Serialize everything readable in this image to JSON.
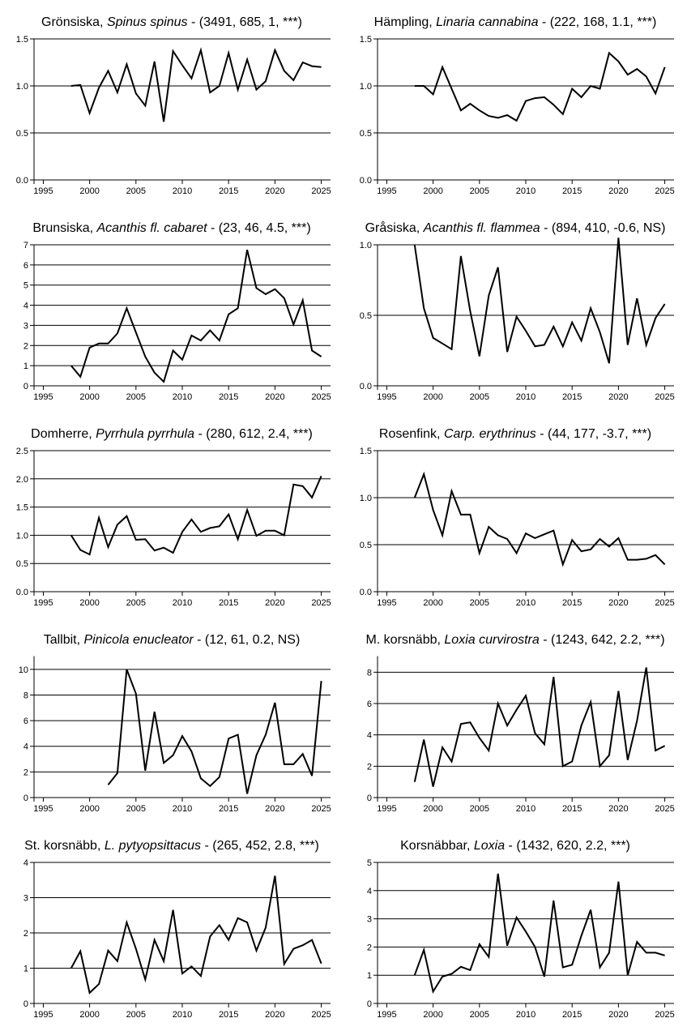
{
  "x_ticks": [
    1995,
    2000,
    2005,
    2010,
    2015,
    2020,
    2025
  ],
  "chart_data": [
    {
      "type": "line",
      "title_common": "Grönsiska, ",
      "title_species": "Spinus spinus",
      "title_stats": " - (3491, 685, 1, ***)",
      "xlim": [
        1994,
        2026
      ],
      "ylim": [
        0,
        1.5
      ],
      "yticks": [
        0.0,
        0.5,
        1.0,
        1.5
      ],
      "ytick_labels": [
        "0.0",
        "0.5",
        "1.0",
        "1.5"
      ],
      "grid": true,
      "series": [
        {
          "x": [
            1998,
            1999,
            2000,
            2001,
            2002,
            2003,
            2004,
            2005,
            2006,
            2007,
            2008,
            2009,
            2010,
            2011,
            2012,
            2013,
            2014,
            2015,
            2016,
            2017,
            2018,
            2019,
            2020,
            2021,
            2022,
            2023,
            2024,
            2025
          ],
          "values": [
            1.0,
            1.01,
            0.71,
            0.98,
            1.16,
            0.93,
            1.23,
            0.92,
            0.79,
            1.26,
            0.62,
            1.37,
            1.22,
            1.08,
            1.38,
            0.93,
            1.0,
            1.35,
            0.96,
            1.28,
            0.96,
            1.05,
            1.38,
            1.16,
            1.06,
            1.25,
            1.21,
            1.2
          ]
        }
      ]
    },
    {
      "type": "line",
      "title_common": "Hämpling, ",
      "title_species": "Linaria cannabina",
      "title_stats": " - (222, 168, 1.1, ***)",
      "xlim": [
        1994,
        2026
      ],
      "ylim": [
        0,
        1.5
      ],
      "yticks": [
        0.0,
        0.5,
        1.0,
        1.5
      ],
      "ytick_labels": [
        "0.0",
        "0.5",
        "1.0",
        "1.5"
      ],
      "grid": true,
      "series": [
        {
          "x": [
            1998,
            1999,
            2000,
            2001,
            2002,
            2003,
            2004,
            2005,
            2006,
            2007,
            2008,
            2009,
            2010,
            2011,
            2012,
            2013,
            2014,
            2015,
            2016,
            2017,
            2018,
            2019,
            2020,
            2021,
            2022,
            2023,
            2024,
            2025
          ],
          "values": [
            1.0,
            1.0,
            0.91,
            1.2,
            0.97,
            0.74,
            0.81,
            0.74,
            0.68,
            0.66,
            0.69,
            0.63,
            0.84,
            0.87,
            0.88,
            0.8,
            0.7,
            0.97,
            0.88,
            1.0,
            0.97,
            1.35,
            1.26,
            1.12,
            1.18,
            1.1,
            0.92,
            1.2
          ]
        }
      ]
    },
    {
      "type": "line",
      "title_common": "Brunsiska, ",
      "title_species": "Acanthis fl. cabaret",
      "title_stats": " - (23, 46, 4.5, ***)",
      "xlim": [
        1994,
        2026
      ],
      "ylim": [
        0,
        7
      ],
      "yticks": [
        0,
        1,
        2,
        3,
        4,
        5,
        6,
        7
      ],
      "ytick_labels": [
        "0",
        "1",
        "2",
        "3",
        "4",
        "5",
        "6",
        "7"
      ],
      "grid": true,
      "series": [
        {
          "x": [
            1998,
            1999,
            2000,
            2001,
            2002,
            2003,
            2004,
            2005,
            2006,
            2007,
            2008,
            2009,
            2010,
            2011,
            2012,
            2013,
            2014,
            2015,
            2016,
            2017,
            2018,
            2019,
            2020,
            2021,
            2022,
            2023,
            2024,
            2025
          ],
          "values": [
            1.0,
            0.45,
            1.9,
            2.1,
            2.1,
            2.6,
            3.85,
            2.65,
            1.45,
            0.65,
            0.2,
            1.75,
            1.3,
            2.5,
            2.25,
            2.75,
            2.25,
            3.55,
            3.85,
            6.75,
            4.85,
            4.55,
            4.8,
            4.35,
            3.05,
            4.25,
            1.75,
            1.45
          ]
        }
      ]
    },
    {
      "type": "line",
      "title_common": "Gråsiska, ",
      "title_species": "Acanthis fl. flammea",
      "title_stats": " - (894, 410, -0.6, NS)",
      "xlim": [
        1994,
        2026
      ],
      "ylim": [
        0,
        1.0
      ],
      "yticks": [
        0.0,
        0.5,
        1.0
      ],
      "ytick_labels": [
        "0.0",
        "0.5",
        "1.0"
      ],
      "grid": true,
      "series": [
        {
          "x": [
            1998,
            1999,
            2000,
            2001,
            2002,
            2003,
            2004,
            2005,
            2006,
            2007,
            2008,
            2009,
            2010,
            2011,
            2012,
            2013,
            2014,
            2015,
            2016,
            2017,
            2018,
            2019,
            2020,
            2021,
            2022,
            2023,
            2024,
            2025
          ],
          "values": [
            1.0,
            0.55,
            0.34,
            0.3,
            0.26,
            0.92,
            0.53,
            0.21,
            0.64,
            0.84,
            0.24,
            0.49,
            0.39,
            0.28,
            0.29,
            0.42,
            0.28,
            0.45,
            0.32,
            0.55,
            0.38,
            0.16,
            1.05,
            0.29,
            0.62,
            0.29,
            0.48,
            0.58
          ]
        }
      ]
    },
    {
      "type": "line",
      "title_common": "Domherre, ",
      "title_species": "Pyrrhula pyrrhula",
      "title_stats": " - (280, 612, 2.4, ***)",
      "xlim": [
        1994,
        2026
      ],
      "ylim": [
        0,
        2.5
      ],
      "yticks": [
        0.0,
        0.5,
        1.0,
        1.5,
        2.0,
        2.5
      ],
      "ytick_labels": [
        "0.0",
        "0.5",
        "1.0",
        "1.5",
        "2.0",
        "2.5"
      ],
      "grid": true,
      "series": [
        {
          "x": [
            1998,
            1999,
            2000,
            2001,
            2002,
            2003,
            2004,
            2005,
            2006,
            2007,
            2008,
            2009,
            2010,
            2011,
            2012,
            2013,
            2014,
            2015,
            2016,
            2017,
            2018,
            2019,
            2020,
            2021,
            2022,
            2023,
            2024,
            2025
          ],
          "values": [
            1.0,
            0.74,
            0.66,
            1.31,
            0.79,
            1.19,
            1.34,
            0.92,
            0.93,
            0.73,
            0.78,
            0.69,
            1.06,
            1.28,
            1.06,
            1.13,
            1.16,
            1.37,
            0.93,
            1.45,
            0.99,
            1.08,
            1.08,
            1.0,
            1.9,
            1.87,
            1.67,
            2.05
          ]
        }
      ]
    },
    {
      "type": "line",
      "title_common": "Rosenfink, ",
      "title_species": "Carp. erythrinus",
      "title_stats": " - (44, 177, -3.7, ***)",
      "xlim": [
        1994,
        2026
      ],
      "ylim": [
        0,
        1.5
      ],
      "yticks": [
        0.0,
        0.5,
        1.0,
        1.5
      ],
      "ytick_labels": [
        "0.0",
        "0.5",
        "1.0",
        "1.5"
      ],
      "grid": true,
      "series": [
        {
          "x": [
            1998,
            1999,
            2000,
            2001,
            2002,
            2003,
            2004,
            2005,
            2006,
            2007,
            2008,
            2009,
            2010,
            2011,
            2012,
            2013,
            2014,
            2015,
            2016,
            2017,
            2018,
            2019,
            2020,
            2021,
            2022,
            2023,
            2024,
            2025
          ],
          "values": [
            1.0,
            1.25,
            0.87,
            0.6,
            1.07,
            0.82,
            0.82,
            0.41,
            0.69,
            0.6,
            0.56,
            0.41,
            0.62,
            0.57,
            0.61,
            0.65,
            0.29,
            0.55,
            0.43,
            0.45,
            0.56,
            0.48,
            0.57,
            0.34,
            0.34,
            0.35,
            0.39,
            0.29
          ]
        }
      ]
    },
    {
      "type": "line",
      "title_common": "Tallbit, ",
      "title_species": "Pinicola enucleator",
      "title_stats": " - (12, 61, 0.2, NS)",
      "xlim": [
        1994,
        2026
      ],
      "ylim": [
        0,
        11
      ],
      "yticks": [
        0,
        2,
        4,
        6,
        8,
        10
      ],
      "ytick_labels": [
        "0",
        "2",
        "4",
        "6",
        "8",
        "10"
      ],
      "grid": true,
      "series": [
        {
          "x": [
            2002,
            2003,
            2004,
            2005,
            2006,
            2007,
            2008,
            2009,
            2010,
            2011,
            2012,
            2013,
            2014,
            2015,
            2016,
            2017,
            2018,
            2019,
            2020,
            2021,
            2022,
            2023,
            2024,
            2025
          ],
          "values": [
            1.0,
            1.9,
            10.0,
            8.1,
            2.1,
            6.7,
            2.7,
            3.3,
            4.8,
            3.6,
            1.5,
            0.9,
            1.6,
            4.6,
            4.9,
            0.3,
            3.3,
            4.9,
            7.4,
            2.6,
            2.6,
            3.4,
            1.7,
            9.1
          ]
        }
      ]
    },
    {
      "type": "line",
      "title_common": "M. korsnäbb, ",
      "title_species": "Loxia curvirostra",
      "title_stats": " - (1243, 642, 2.2, ***)",
      "xlim": [
        1994,
        2026
      ],
      "ylim": [
        0,
        9
      ],
      "yticks": [
        0,
        2,
        4,
        6,
        8
      ],
      "ytick_labels": [
        "0",
        "2",
        "4",
        "6",
        "8"
      ],
      "grid": true,
      "series": [
        {
          "x": [
            1998,
            1999,
            2000,
            2001,
            2002,
            2003,
            2004,
            2005,
            2006,
            2007,
            2008,
            2009,
            2010,
            2011,
            2012,
            2013,
            2014,
            2015,
            2016,
            2017,
            2018,
            2019,
            2020,
            2021,
            2022,
            2023,
            2024,
            2025
          ],
          "values": [
            1.0,
            3.7,
            0.7,
            3.2,
            2.3,
            4.7,
            4.8,
            3.8,
            3.0,
            6.0,
            4.6,
            5.6,
            6.5,
            4.1,
            3.4,
            7.7,
            2.0,
            2.3,
            4.6,
            6.1,
            2.0,
            2.7,
            6.8,
            2.4,
            4.9,
            8.3,
            3.0,
            3.3
          ]
        }
      ]
    },
    {
      "type": "line",
      "title_common": "St. korsnäbb, ",
      "title_species": "L. pytyopsittacus",
      "title_stats": " - (265, 452, 2.8, ***)",
      "xlim": [
        1994,
        2026
      ],
      "ylim": [
        0,
        4
      ],
      "yticks": [
        0,
        1,
        2,
        3,
        4
      ],
      "ytick_labels": [
        "0",
        "1",
        "2",
        "3",
        "4"
      ],
      "grid": true,
      "series": [
        {
          "x": [
            1998,
            1999,
            2000,
            2001,
            2002,
            2003,
            2004,
            2005,
            2006,
            2007,
            2008,
            2009,
            2010,
            2011,
            2012,
            2013,
            2014,
            2015,
            2016,
            2017,
            2018,
            2019,
            2020,
            2021,
            2022,
            2023,
            2024,
            2025
          ],
          "values": [
            1.0,
            1.48,
            0.3,
            0.55,
            1.5,
            1.2,
            2.3,
            1.55,
            0.68,
            1.8,
            1.2,
            2.65,
            0.85,
            1.05,
            0.78,
            1.9,
            2.22,
            1.8,
            2.42,
            2.3,
            1.5,
            2.15,
            3.62,
            1.12,
            1.55,
            1.65,
            1.8,
            1.13
          ]
        }
      ]
    },
    {
      "type": "line",
      "title_common": "Korsnäbbar, ",
      "title_species": "Loxia",
      "title_stats": " - (1432, 620, 2.2, ***)",
      "xlim": [
        1994,
        2026
      ],
      "ylim": [
        0,
        5
      ],
      "yticks": [
        0,
        1,
        2,
        3,
        4,
        5
      ],
      "ytick_labels": [
        "0",
        "1",
        "2",
        "3",
        "4",
        "5"
      ],
      "grid": true,
      "series": [
        {
          "x": [
            1998,
            1999,
            2000,
            2001,
            2002,
            2003,
            2004,
            2005,
            2006,
            2007,
            2008,
            2009,
            2010,
            2011,
            2012,
            2013,
            2014,
            2015,
            2016,
            2017,
            2018,
            2019,
            2020,
            2021,
            2022,
            2023,
            2024,
            2025
          ],
          "values": [
            1.0,
            1.9,
            0.42,
            0.95,
            1.05,
            1.3,
            1.18,
            2.1,
            1.65,
            4.6,
            2.05,
            3.05,
            2.55,
            2.0,
            0.95,
            3.65,
            1.28,
            1.37,
            2.4,
            3.32,
            1.28,
            1.8,
            4.32,
            1.0,
            2.18,
            1.8,
            1.8,
            1.7
          ]
        }
      ]
    }
  ]
}
